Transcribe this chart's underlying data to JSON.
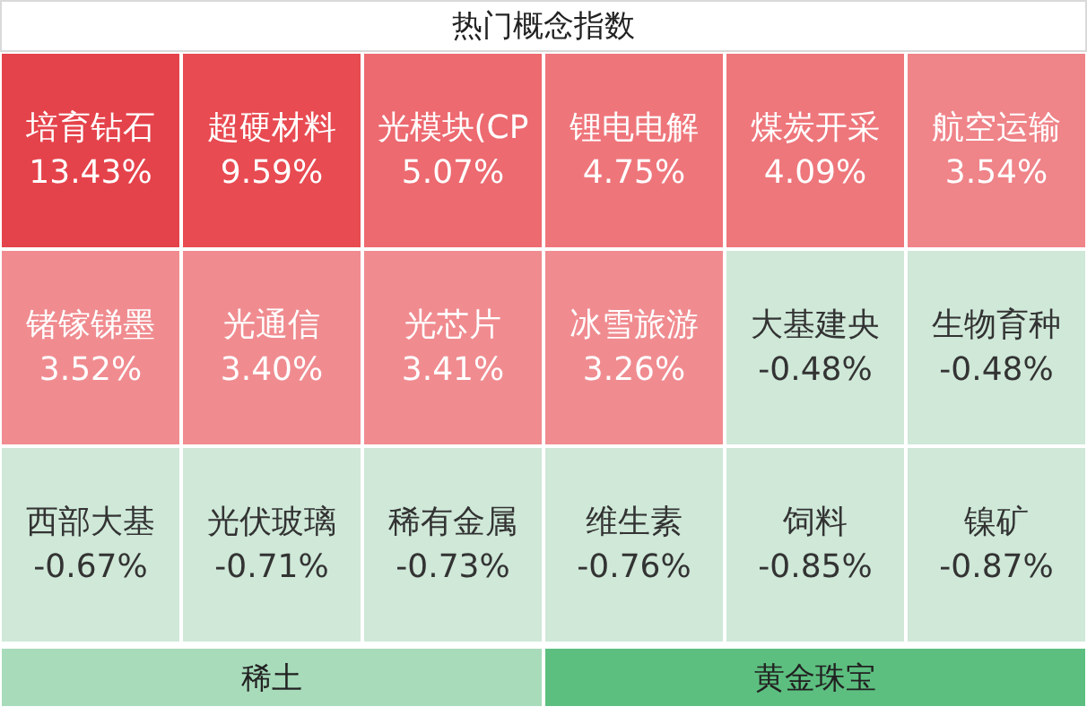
{
  "chart_data": {
    "type": "other",
    "title": "热门概念指数",
    "categories": [
      "培育钻石",
      "超硬材料",
      "光模块(CP",
      "锂电电解",
      "煤炭开采",
      "航空运输",
      "锗镓锑墨",
      "光通信",
      "光芯片",
      "冰雪旅游",
      "大基建央",
      "生物育种",
      "西部大基",
      "光伏玻璃",
      "稀有金属",
      "维生素",
      "饲料",
      "镍矿",
      "稀土",
      "黄金珠宝"
    ],
    "values": [
      13.43,
      9.59,
      5.07,
      4.75,
      4.09,
      3.54,
      3.52,
      3.4,
      3.41,
      3.26,
      -0.48,
      -0.48,
      -0.67,
      -0.71,
      -0.73,
      -0.76,
      -0.85,
      -0.87,
      null,
      null
    ],
    "value_labels": [
      "13.43%",
      "9.59%",
      "5.07%",
      "4.75%",
      "4.09%",
      "3.54%",
      "3.52%",
      "3.40%",
      "3.41%",
      "3.26%",
      "-0.48%",
      "-0.48%",
      "-0.67%",
      "-0.71%",
      "-0.73%",
      "-0.76%",
      "-0.85%",
      "-0.87%",
      null,
      null
    ],
    "colors": [
      "#e5434b",
      "#e84b52",
      "#ec6a70",
      "#ee767b",
      "#ee777c",
      "#ef8489",
      "#f08c90",
      "#f08c90",
      "#f08c90",
      "#f08c90",
      "#cfe8d8",
      "#cfe8d8",
      "#cfe8d8",
      "#cfe8d8",
      "#cfe8d8",
      "#cfe8d8",
      "#cfe8d8",
      "#cfe8d8",
      "#a8dbba",
      "#5cbf7f"
    ]
  }
}
